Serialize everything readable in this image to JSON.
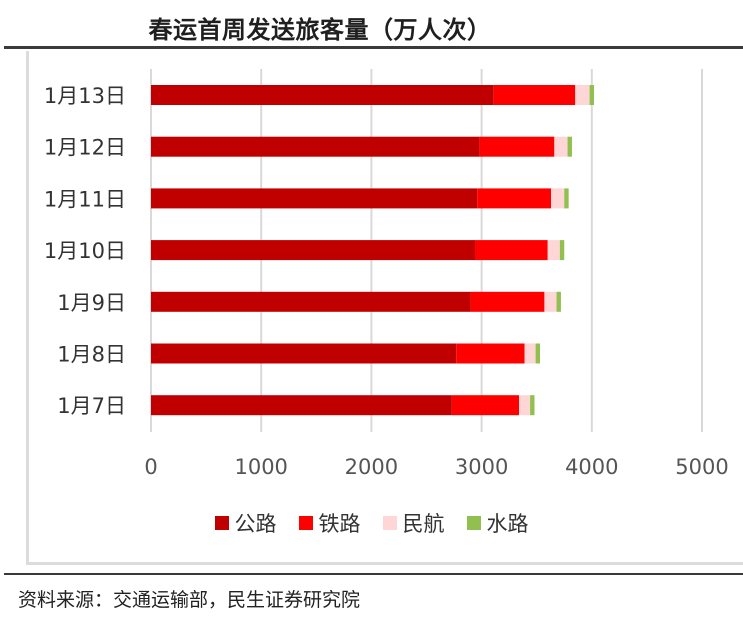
{
  "title": "春运首周发送旅客量（万人次）",
  "source": "资料来源：交通运输部，民生证券研究院",
  "chart_data": {
    "type": "bar",
    "orientation": "horizontal",
    "stacked": true,
    "title": "春运首周发送旅客量（万人次）",
    "categories": [
      "1月13日",
      "1月12日",
      "1月11日",
      "1月10日",
      "1月9日",
      "1月8日",
      "1月7日"
    ],
    "series": [
      {
        "name": "公路",
        "color": "#c00000",
        "values": [
          3110,
          2980,
          2960,
          2940,
          2900,
          2770,
          2730
        ]
      },
      {
        "name": "铁路",
        "color": "#ff0000",
        "values": [
          740,
          680,
          670,
          660,
          670,
          620,
          610
        ]
      },
      {
        "name": "民航",
        "color": "#ffd6d6",
        "values": [
          130,
          120,
          120,
          110,
          110,
          100,
          100
        ]
      },
      {
        "name": "水路",
        "color": "#92c050",
        "values": [
          40,
          40,
          40,
          40,
          40,
          40,
          40
        ]
      }
    ],
    "xlim": [
      0,
      5000
    ],
    "xticks": [
      "0",
      "1000",
      "2000",
      "3000",
      "4000",
      "5000"
    ],
    "grid": "vertical",
    "legend": "bottom"
  }
}
